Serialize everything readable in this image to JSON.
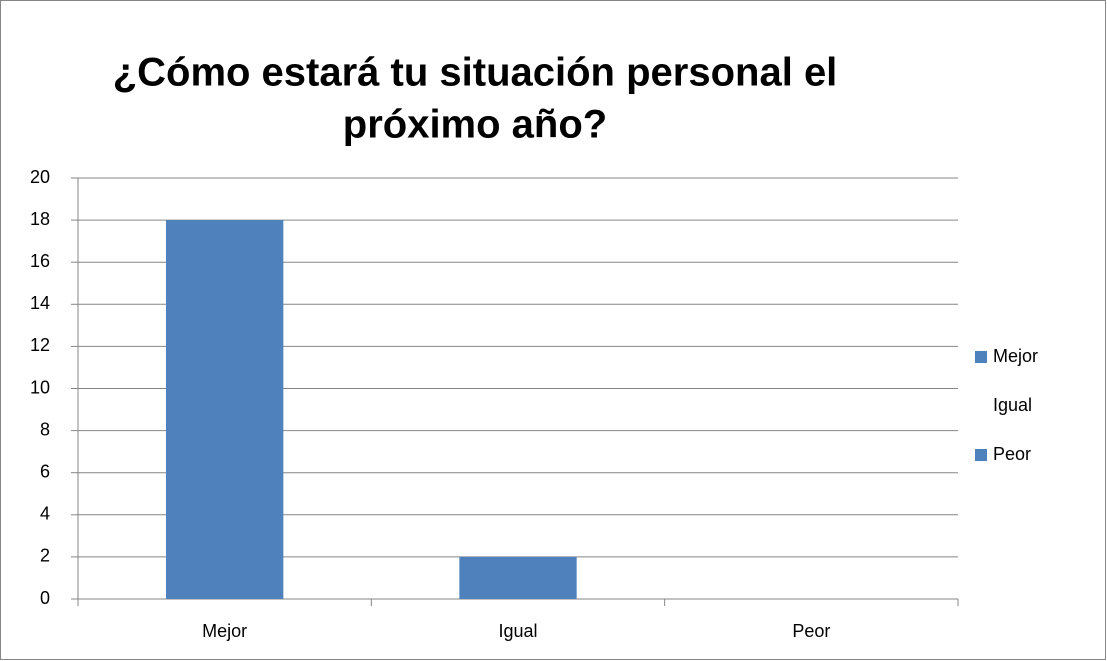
{
  "chart_data": {
    "type": "bar",
    "title": [
      "¿Cómo estará tu situación personal el",
      "próximo año?"
    ],
    "categories": [
      "Mejor",
      "Igual",
      "Peor"
    ],
    "values": [
      18,
      2,
      0
    ],
    "colors": [
      "#4f81bd",
      "#4f81bd",
      "#4f81bd"
    ],
    "legend": [
      "Mejor",
      "Igual",
      "Peor"
    ],
    "legend_marker_colors": [
      "#4f81bd",
      "#ffffff",
      "#4f81bd"
    ],
    "legend_position": "right",
    "ylim": [
      0,
      20
    ],
    "yticks": [
      0,
      2,
      4,
      6,
      8,
      10,
      12,
      14,
      16,
      18,
      20
    ],
    "grid": true
  }
}
